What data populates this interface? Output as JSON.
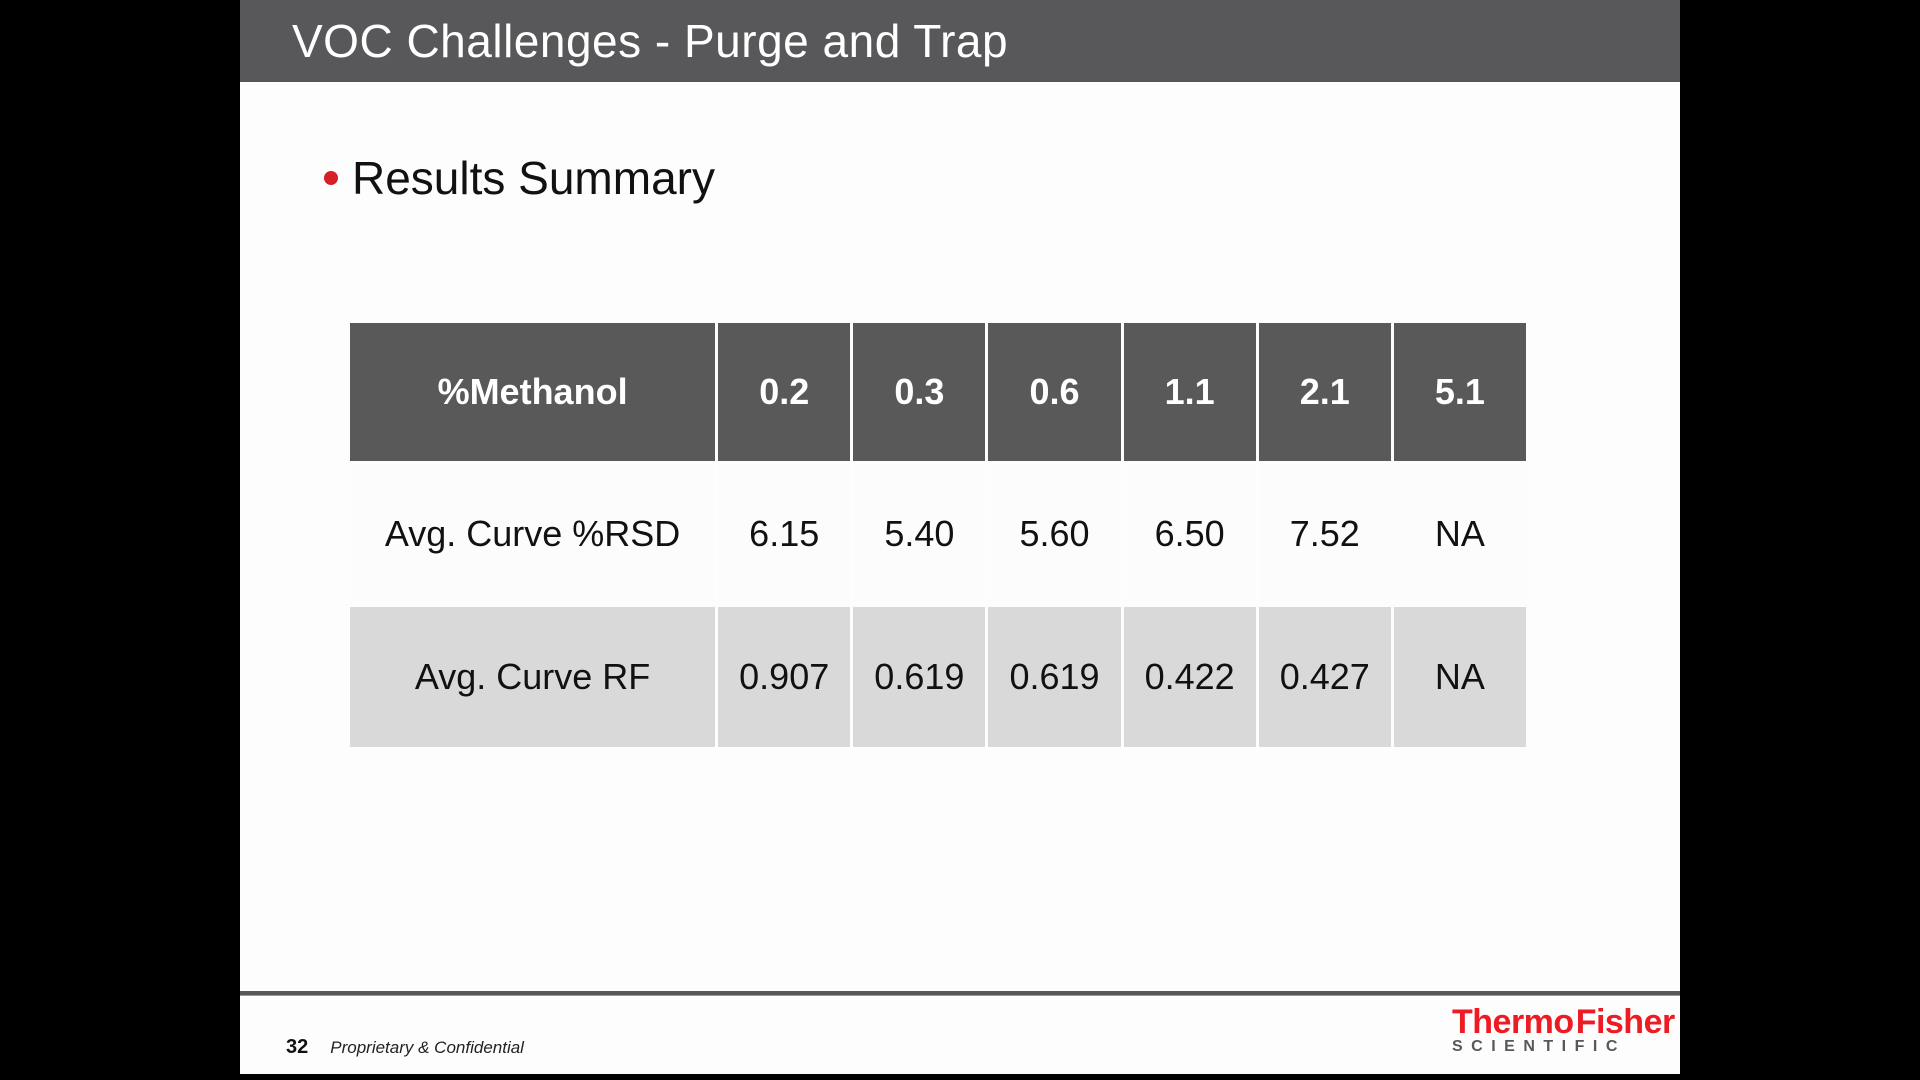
{
  "slide": {
    "title": "VOC Challenges - Purge and Trap",
    "heading": "Results Summary",
    "table": {
      "header": [
        "%Methanol",
        "0.2",
        "0.3",
        "0.6",
        "1.1",
        "2.1",
        "5.1"
      ],
      "rows": [
        {
          "label": "Avg. Curve %RSD",
          "values": [
            "6.15",
            "5.40",
            "5.60",
            "6.50",
            "7.52",
            "NA"
          ]
        },
        {
          "label": "Avg. Curve RF",
          "values": [
            "0.907",
            "0.619",
            "0.619",
            "0.422",
            "0.427",
            "NA"
          ]
        }
      ]
    },
    "footer": {
      "page_number": "32",
      "confidentiality": "Proprietary & Confidential"
    },
    "logo": {
      "thermo": "Thermo",
      "fisher": "Fisher",
      "scientific": "SCIENTIFIC"
    }
  },
  "colors": {
    "title_bar_background": "#58585a",
    "table_header_background": "#595959",
    "banded_row_background": "#d9d9d9",
    "bullet_red": "#d62027",
    "logo_red": "#ed1c24",
    "logo_gray": "#58585a",
    "letterbox_black": "#000000"
  }
}
